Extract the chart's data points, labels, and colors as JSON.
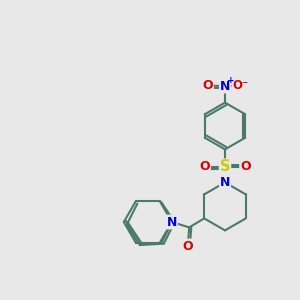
{
  "bg_color": "#e8e8e8",
  "bond_color": "#4a7a6a",
  "N_color": "#0000dd",
  "O_color": "#dd0000",
  "S_color": "#cccc00",
  "lw": 1.5,
  "fs": 9.0,
  "figsize": [
    3.0,
    3.0
  ],
  "dpi": 100,
  "xlim": [
    0,
    10
  ],
  "ylim": [
    0,
    10
  ]
}
